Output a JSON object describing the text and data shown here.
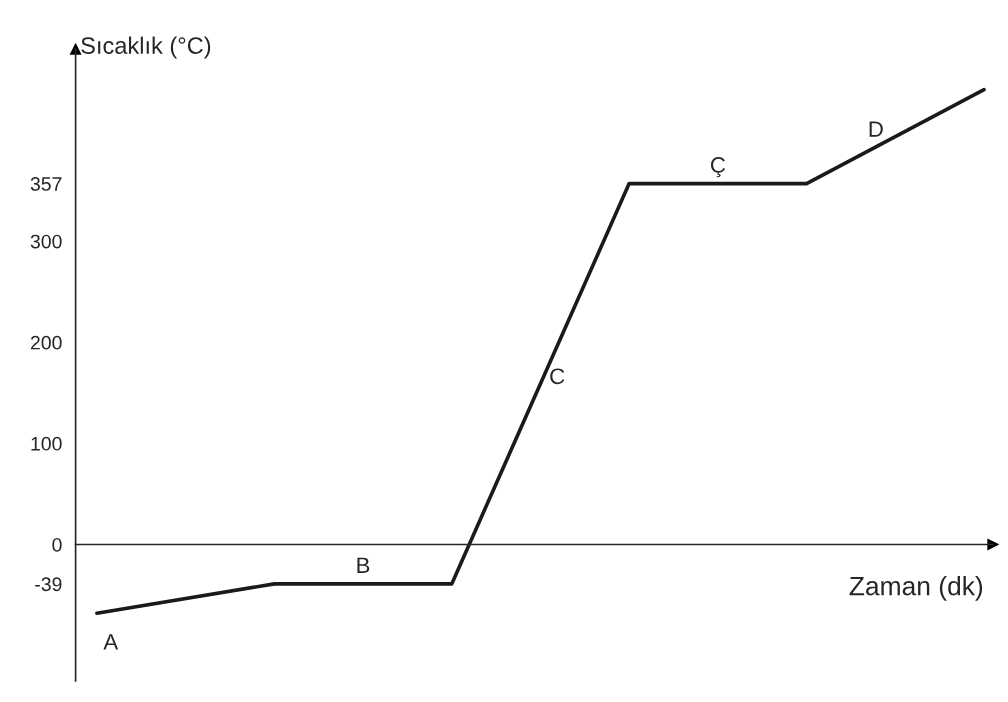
{
  "chart_data": {
    "type": "line",
    "xlabel": "Zaman (dk)",
    "ylabel": "Sıcaklık (°C)",
    "categories": [
      null,
      null,
      null,
      null,
      null,
      null
    ],
    "series": [
      {
        "color": "#1a1a1a",
        "values": [
          -68,
          -39,
          -39,
          357,
          357,
          450
        ]
      }
    ],
    "ylim": [
      -135,
      490
    ],
    "yticks": [
      -39,
      0,
      100,
      200,
      300,
      357
    ],
    "annotations": [
      "A",
      "B",
      "C",
      "Ç",
      "D"
    ]
  }
}
